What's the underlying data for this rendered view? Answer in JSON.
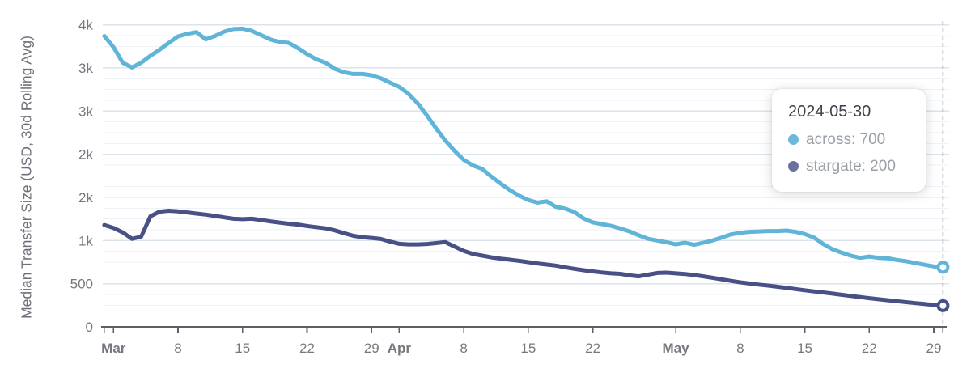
{
  "y_axis_title": "Median Transfer Size (USD, 30d Rolling Avg)",
  "tooltip": {
    "date": "2024-05-30",
    "entries": [
      {
        "name": "across",
        "value": "700",
        "label": "across: 700",
        "color": "#6cb8d9"
      },
      {
        "name": "stargate",
        "value": "200",
        "label": "stargate: 200",
        "color": "#6b709d"
      }
    ]
  },
  "colors": {
    "across_line": "#5fb4d8",
    "stargate_line": "#485085",
    "axis_line": "#5c6066",
    "axis_text": "#75797f",
    "grid_major": "#dde3eb",
    "grid_minor": "#eef2f7",
    "cursor_line": "#a8aeb6",
    "marker_fill": "#ffffff"
  },
  "chart_data": {
    "type": "line",
    "title": "",
    "xlabel": "",
    "ylabel": "Median Transfer Size (USD, 30d Rolling Avg)",
    "grid": "horizontal-only",
    "legend_position": "tooltip-overlay",
    "x_start_date": "2024-02-29",
    "x_end_date": "2024-05-30",
    "cursor_day": 91,
    "ylim": [
      0,
      3550
    ],
    "y_ticks": [
      {
        "value": 0,
        "label": "0"
      },
      {
        "value": 500,
        "label": "500"
      },
      {
        "value": 1000,
        "label": "1k"
      },
      {
        "value": 1500,
        "label": "2k"
      },
      {
        "value": 2000,
        "label": "2k"
      },
      {
        "value": 2500,
        "label": "3k"
      },
      {
        "value": 3000,
        "label": "3k"
      },
      {
        "value": 3500,
        "label": "4k"
      }
    ],
    "x_ticks": [
      {
        "day": 0,
        "label": "",
        "bold": false
      },
      {
        "day": 1,
        "label": "Mar",
        "bold": true
      },
      {
        "day": 8,
        "label": "8",
        "bold": false
      },
      {
        "day": 15,
        "label": "15",
        "bold": false
      },
      {
        "day": 22,
        "label": "22",
        "bold": false
      },
      {
        "day": 29,
        "label": "29",
        "bold": false
      },
      {
        "day": 32,
        "label": "Apr",
        "bold": true
      },
      {
        "day": 39,
        "label": "8",
        "bold": false
      },
      {
        "day": 46,
        "label": "15",
        "bold": false
      },
      {
        "day": 53,
        "label": "22",
        "bold": false
      },
      {
        "day": 62,
        "label": "May",
        "bold": true
      },
      {
        "day": 69,
        "label": "8",
        "bold": false
      },
      {
        "day": 76,
        "label": "15",
        "bold": false
      },
      {
        "day": 83,
        "label": "22",
        "bold": false
      },
      {
        "day": 90,
        "label": "29",
        "bold": false
      },
      {
        "day": 91,
        "label": "",
        "bold": false
      }
    ],
    "series": [
      {
        "name": "across",
        "color": "#5fb4d8",
        "end_marker": true,
        "points": [
          [
            0,
            3370
          ],
          [
            1,
            3240
          ],
          [
            2,
            3060
          ],
          [
            3,
            3005
          ],
          [
            4,
            3060
          ],
          [
            5,
            3140
          ],
          [
            6,
            3210
          ],
          [
            7,
            3290
          ],
          [
            8,
            3365
          ],
          [
            9,
            3395
          ],
          [
            10,
            3415
          ],
          [
            11,
            3330
          ],
          [
            12,
            3370
          ],
          [
            13,
            3420
          ],
          [
            14,
            3450
          ],
          [
            15,
            3455
          ],
          [
            16,
            3430
          ],
          [
            17,
            3380
          ],
          [
            18,
            3330
          ],
          [
            19,
            3300
          ],
          [
            20,
            3290
          ],
          [
            21,
            3230
          ],
          [
            22,
            3160
          ],
          [
            23,
            3100
          ],
          [
            24,
            3060
          ],
          [
            25,
            2990
          ],
          [
            26,
            2950
          ],
          [
            27,
            2930
          ],
          [
            28,
            2930
          ],
          [
            29,
            2915
          ],
          [
            30,
            2880
          ],
          [
            31,
            2830
          ],
          [
            32,
            2780
          ],
          [
            33,
            2700
          ],
          [
            34,
            2590
          ],
          [
            35,
            2450
          ],
          [
            36,
            2300
          ],
          [
            37,
            2160
          ],
          [
            38,
            2040
          ],
          [
            39,
            1935
          ],
          [
            40,
            1870
          ],
          [
            41,
            1830
          ],
          [
            42,
            1740
          ],
          [
            43,
            1660
          ],
          [
            44,
            1585
          ],
          [
            45,
            1520
          ],
          [
            46,
            1470
          ],
          [
            47,
            1440
          ],
          [
            48,
            1455
          ],
          [
            49,
            1390
          ],
          [
            50,
            1370
          ],
          [
            51,
            1330
          ],
          [
            52,
            1255
          ],
          [
            53,
            1210
          ],
          [
            54,
            1190
          ],
          [
            55,
            1170
          ],
          [
            56,
            1140
          ],
          [
            57,
            1105
          ],
          [
            58,
            1060
          ],
          [
            59,
            1020
          ],
          [
            60,
            1000
          ],
          [
            61,
            980
          ],
          [
            62,
            955
          ],
          [
            63,
            975
          ],
          [
            64,
            950
          ],
          [
            65,
            975
          ],
          [
            66,
            1000
          ],
          [
            67,
            1035
          ],
          [
            68,
            1070
          ],
          [
            69,
            1090
          ],
          [
            70,
            1100
          ],
          [
            71,
            1105
          ],
          [
            72,
            1110
          ],
          [
            73,
            1110
          ],
          [
            74,
            1115
          ],
          [
            75,
            1100
          ],
          [
            76,
            1075
          ],
          [
            77,
            1035
          ],
          [
            78,
            960
          ],
          [
            79,
            900
          ],
          [
            80,
            860
          ],
          [
            81,
            825
          ],
          [
            82,
            800
          ],
          [
            83,
            815
          ],
          [
            84,
            800
          ],
          [
            85,
            795
          ],
          [
            86,
            775
          ],
          [
            87,
            760
          ],
          [
            88,
            740
          ],
          [
            89,
            720
          ],
          [
            90,
            700
          ],
          [
            91,
            690
          ]
        ]
      },
      {
        "name": "stargate",
        "color": "#485085",
        "end_marker": true,
        "points": [
          [
            0,
            1180
          ],
          [
            1,
            1145
          ],
          [
            2,
            1095
          ],
          [
            3,
            1020
          ],
          [
            4,
            1045
          ],
          [
            5,
            1280
          ],
          [
            6,
            1335
          ],
          [
            7,
            1345
          ],
          [
            8,
            1338
          ],
          [
            9,
            1325
          ],
          [
            10,
            1312
          ],
          [
            11,
            1300
          ],
          [
            12,
            1285
          ],
          [
            13,
            1268
          ],
          [
            14,
            1252
          ],
          [
            15,
            1248
          ],
          [
            16,
            1252
          ],
          [
            17,
            1238
          ],
          [
            18,
            1222
          ],
          [
            19,
            1208
          ],
          [
            20,
            1195
          ],
          [
            21,
            1185
          ],
          [
            22,
            1168
          ],
          [
            23,
            1155
          ],
          [
            24,
            1142
          ],
          [
            25,
            1118
          ],
          [
            26,
            1085
          ],
          [
            27,
            1055
          ],
          [
            28,
            1038
          ],
          [
            29,
            1030
          ],
          [
            30,
            1018
          ],
          [
            31,
            988
          ],
          [
            32,
            962
          ],
          [
            33,
            955
          ],
          [
            34,
            955
          ],
          [
            35,
            960
          ],
          [
            36,
            970
          ],
          [
            37,
            982
          ],
          [
            38,
            930
          ],
          [
            39,
            880
          ],
          [
            40,
            845
          ],
          [
            41,
            825
          ],
          [
            42,
            805
          ],
          [
            43,
            790
          ],
          [
            44,
            778
          ],
          [
            45,
            765
          ],
          [
            46,
            750
          ],
          [
            47,
            735
          ],
          [
            48,
            722
          ],
          [
            49,
            710
          ],
          [
            50,
            690
          ],
          [
            51,
            672
          ],
          [
            52,
            656
          ],
          [
            53,
            642
          ],
          [
            54,
            630
          ],
          [
            55,
            620
          ],
          [
            56,
            614
          ],
          [
            57,
            596
          ],
          [
            58,
            585
          ],
          [
            59,
            605
          ],
          [
            60,
            624
          ],
          [
            61,
            628
          ],
          [
            62,
            620
          ],
          [
            63,
            612
          ],
          [
            64,
            600
          ],
          [
            65,
            585
          ],
          [
            66,
            568
          ],
          [
            67,
            550
          ],
          [
            68,
            532
          ],
          [
            69,
            516
          ],
          [
            70,
            502
          ],
          [
            71,
            489
          ],
          [
            72,
            478
          ],
          [
            73,
            465
          ],
          [
            74,
            452
          ],
          [
            75,
            438
          ],
          [
            76,
            424
          ],
          [
            77,
            411
          ],
          [
            78,
            398
          ],
          [
            79,
            385
          ],
          [
            80,
            371
          ],
          [
            81,
            358
          ],
          [
            82,
            345
          ],
          [
            83,
            332
          ],
          [
            84,
            320
          ],
          [
            85,
            308
          ],
          [
            86,
            297
          ],
          [
            87,
            286
          ],
          [
            88,
            275
          ],
          [
            89,
            264
          ],
          [
            90,
            254
          ],
          [
            91,
            245
          ]
        ]
      }
    ]
  }
}
